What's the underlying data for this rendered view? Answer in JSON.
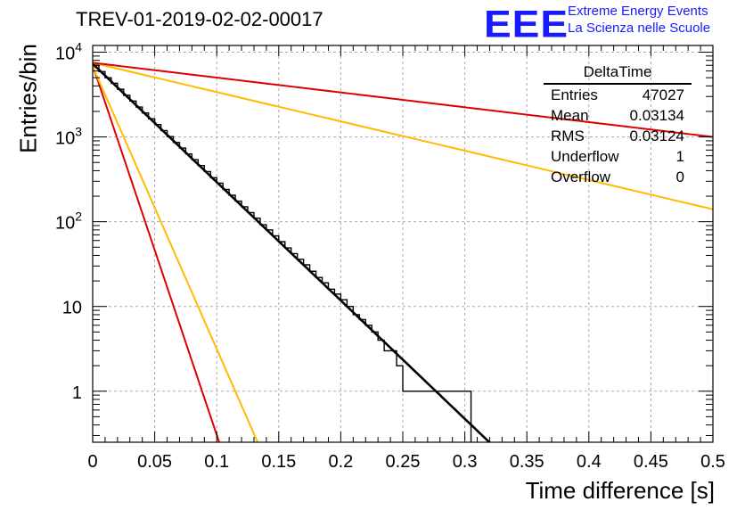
{
  "title": "TREV-01-2019-02-02-00017",
  "logo": {
    "mark": "EEE",
    "line1": "Extreme Energy Events",
    "line2": "La Scienza nelle Scuole",
    "color": "#1a1aff"
  },
  "stats_box": {
    "name": "DeltaTime",
    "rows": [
      {
        "label": "Entries",
        "value": "47027"
      },
      {
        "label": "Mean",
        "value": "0.03134"
      },
      {
        "label": "RMS",
        "value": "0.03124"
      },
      {
        "label": "Underflow",
        "value": "1"
      },
      {
        "label": "Overflow",
        "value": "0"
      }
    ]
  },
  "chart_data": {
    "type": "histogram",
    "xlabel": "Time difference [s]",
    "ylabel": "Entries/bin",
    "xlim": [
      0,
      0.5
    ],
    "ylim": [
      0.25,
      12000
    ],
    "log_y": true,
    "grid": true,
    "x_ticks": [
      "0",
      "0.05",
      "0.1",
      "0.15",
      "0.2",
      "0.25",
      "0.3",
      "0.35",
      "0.4",
      "0.45",
      "0.5"
    ],
    "y_ticks": [
      {
        "value": 1,
        "base": "1",
        "exp": ""
      },
      {
        "value": 10,
        "base": "10",
        "exp": ""
      },
      {
        "value": 100,
        "base": "10",
        "exp": "2"
      },
      {
        "value": 1000,
        "base": "10",
        "exp": "3"
      },
      {
        "value": 10000,
        "base": "10",
        "exp": "4"
      }
    ],
    "histogram": {
      "bin_width": 0.005,
      "color": "#000000",
      "counts": [
        7000,
        5900,
        5000,
        4300,
        3650,
        3100,
        2650,
        2250,
        1920,
        1640,
        1400,
        1190,
        1010,
        860,
        740,
        630,
        540,
        460,
        390,
        330,
        285,
        240,
        205,
        175,
        150,
        128,
        110,
        92,
        80,
        68,
        58,
        49,
        42,
        36,
        31,
        26,
        22,
        19,
        16,
        14,
        12,
        10,
        8,
        7,
        6,
        5,
        4,
        3,
        3,
        2,
        1,
        1,
        1,
        1,
        1,
        1,
        1,
        1,
        1,
        1,
        1,
        0,
        0,
        0,
        0,
        0,
        0,
        0,
        0,
        0,
        0,
        0,
        0,
        0,
        0,
        0,
        0,
        0,
        0,
        0,
        0,
        0,
        0,
        0,
        0,
        0,
        0,
        0,
        0,
        0,
        0,
        0,
        0,
        0,
        0,
        0,
        0,
        0,
        0,
        0
      ]
    },
    "series": [
      {
        "type": "exponential",
        "color": "#000000",
        "y0": 7300,
        "y1": 0.18,
        "x1": 0.33
      },
      {
        "type": "exponential",
        "color": "#dd0000",
        "y0": 7000,
        "y1": 0.25,
        "x1": 0.102
      },
      {
        "type": "exponential",
        "color": "#ffbb00",
        "y0": 6800,
        "y1": 0.25,
        "x1": 0.133
      },
      {
        "type": "exponential",
        "color": "#ffbb00",
        "y0": 7500,
        "y1": 140,
        "x1": 0.5
      },
      {
        "type": "exponential",
        "color": "#dd0000",
        "y0": 7500,
        "y1": 1000,
        "x1": 0.5
      }
    ]
  }
}
